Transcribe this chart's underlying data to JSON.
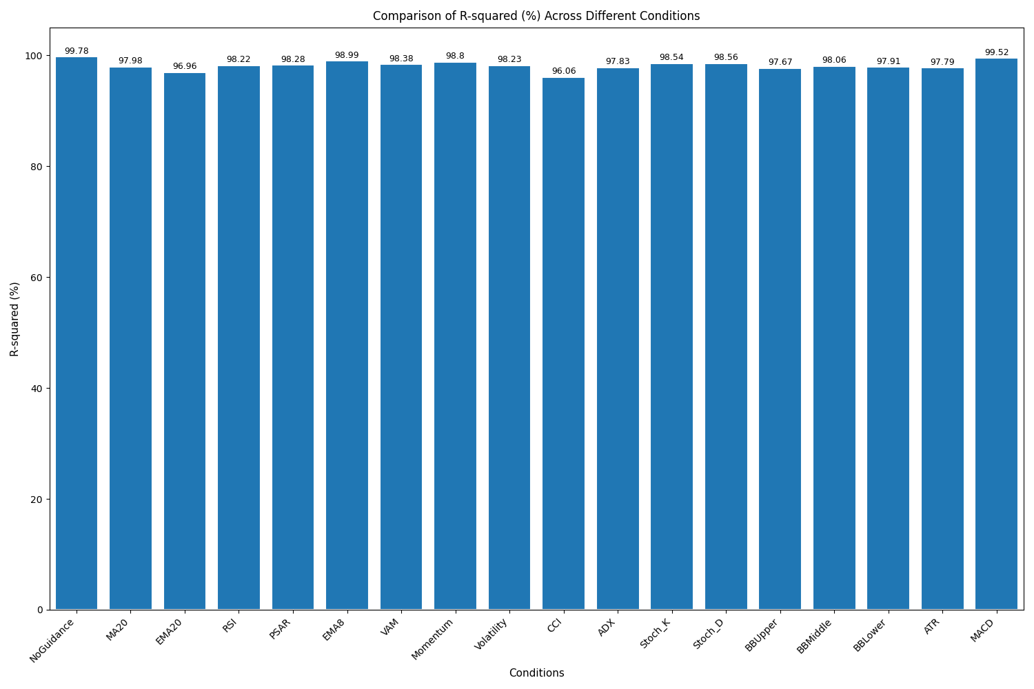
{
  "categories": [
    "NoGuidance",
    "MA20",
    "EMA20",
    "RSI",
    "PSAR",
    "EMA8",
    "VAM",
    "Momentum",
    "Volatility",
    "CCI",
    "ADX",
    "Stoch_K",
    "Stoch_D",
    "BBUpper",
    "BBMiddle",
    "BBLower",
    "ATR",
    "MACD"
  ],
  "values": [
    99.78,
    97.98,
    96.96,
    98.22,
    98.28,
    98.99,
    98.38,
    98.8,
    98.23,
    96.06,
    97.83,
    98.54,
    98.56,
    97.67,
    98.06,
    97.91,
    97.79,
    99.52
  ],
  "bar_color": "#2077b4",
  "title": "Comparison of R-squared (%) Across Different Conditions",
  "xlabel": "Conditions",
  "ylabel": "R-squared (%)",
  "ylim": [
    0,
    105
  ],
  "yticks": [
    0,
    20,
    40,
    60,
    80,
    100
  ],
  "title_fontsize": 12,
  "label_fontsize": 11,
  "tick_fontsize": 10,
  "bar_label_fontsize": 9,
  "bar_width": 0.8,
  "figsize": [
    15,
    10
  ],
  "dpi": 100
}
